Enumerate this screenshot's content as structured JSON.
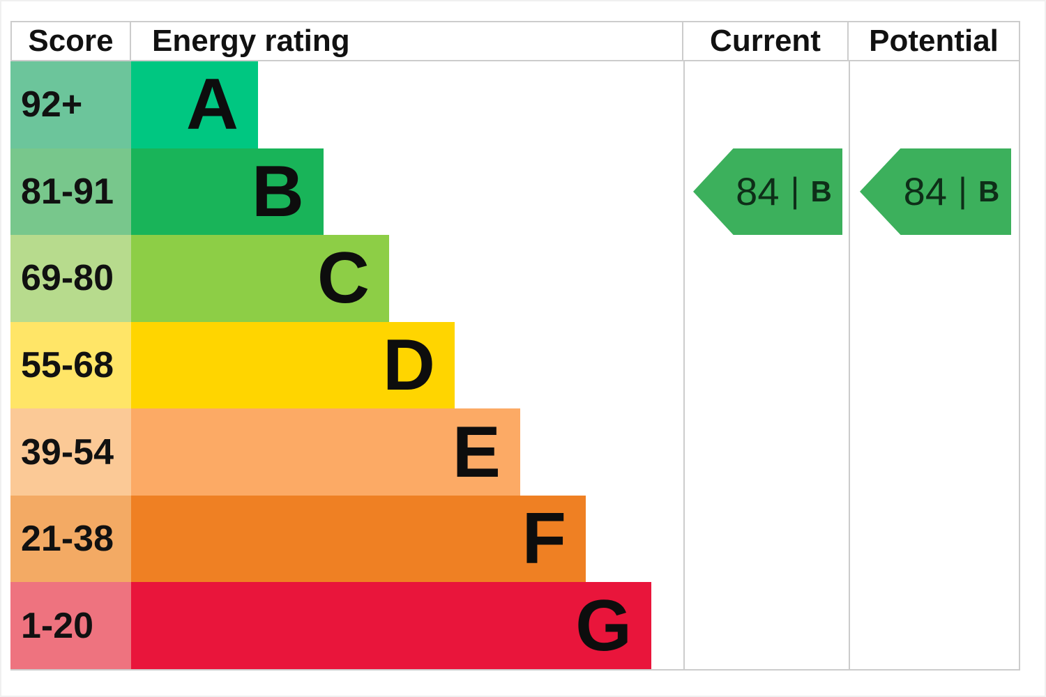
{
  "header": {
    "score": "Score",
    "energy_rating": "Energy rating",
    "current": "Current",
    "potential": "Potential"
  },
  "bands": [
    {
      "score": "92+",
      "letter": "A",
      "bar_color": "#00c781",
      "tint_color": "#6cc59b"
    },
    {
      "score": "81-91",
      "letter": "B",
      "bar_color": "#19b459",
      "tint_color": "#78c78c"
    },
    {
      "score": "69-80",
      "letter": "C",
      "bar_color": "#8dce46",
      "tint_color": "#b7db8d"
    },
    {
      "score": "55-68",
      "letter": "D",
      "bar_color": "#ffd500",
      "tint_color": "#ffe567"
    },
    {
      "score": "39-54",
      "letter": "E",
      "bar_color": "#fcaa65",
      "tint_color": "#fbc996"
    },
    {
      "score": "21-38",
      "letter": "F",
      "bar_color": "#ef8023",
      "tint_color": "#f3aa64"
    },
    {
      "score": "1-20",
      "letter": "G",
      "bar_color": "#e9153b",
      "tint_color": "#ee737f"
    }
  ],
  "current": {
    "value": "84",
    "separator": "|",
    "letter": "B",
    "arrow_color": "#3cb05c"
  },
  "potential": {
    "value": "84",
    "separator": "|",
    "letter": "B",
    "arrow_color": "#3cb05c"
  },
  "colors": {
    "border": "#cccccc",
    "text": "#111111"
  },
  "chart_data": {
    "type": "bar",
    "chart_kind": "epc-energy-efficiency-rating",
    "columns": [
      "Score",
      "Energy rating",
      "Current",
      "Potential"
    ],
    "categories": [
      "A",
      "B",
      "C",
      "D",
      "E",
      "F",
      "G"
    ],
    "score_ranges": [
      "92+",
      "81-91",
      "69-80",
      "55-68",
      "39-54",
      "21-38",
      "1-20"
    ],
    "bar_lengths_relative": [
      1,
      2,
      3,
      4,
      5,
      6,
      7
    ],
    "band_colors": [
      "#00c781",
      "#19b459",
      "#8dce46",
      "#ffd500",
      "#fcaa65",
      "#ef8023",
      "#e9153b"
    ],
    "current": {
      "score": 84,
      "band": "B"
    },
    "potential": {
      "score": 84,
      "band": "B"
    },
    "grid": false,
    "legend_position": "none"
  }
}
